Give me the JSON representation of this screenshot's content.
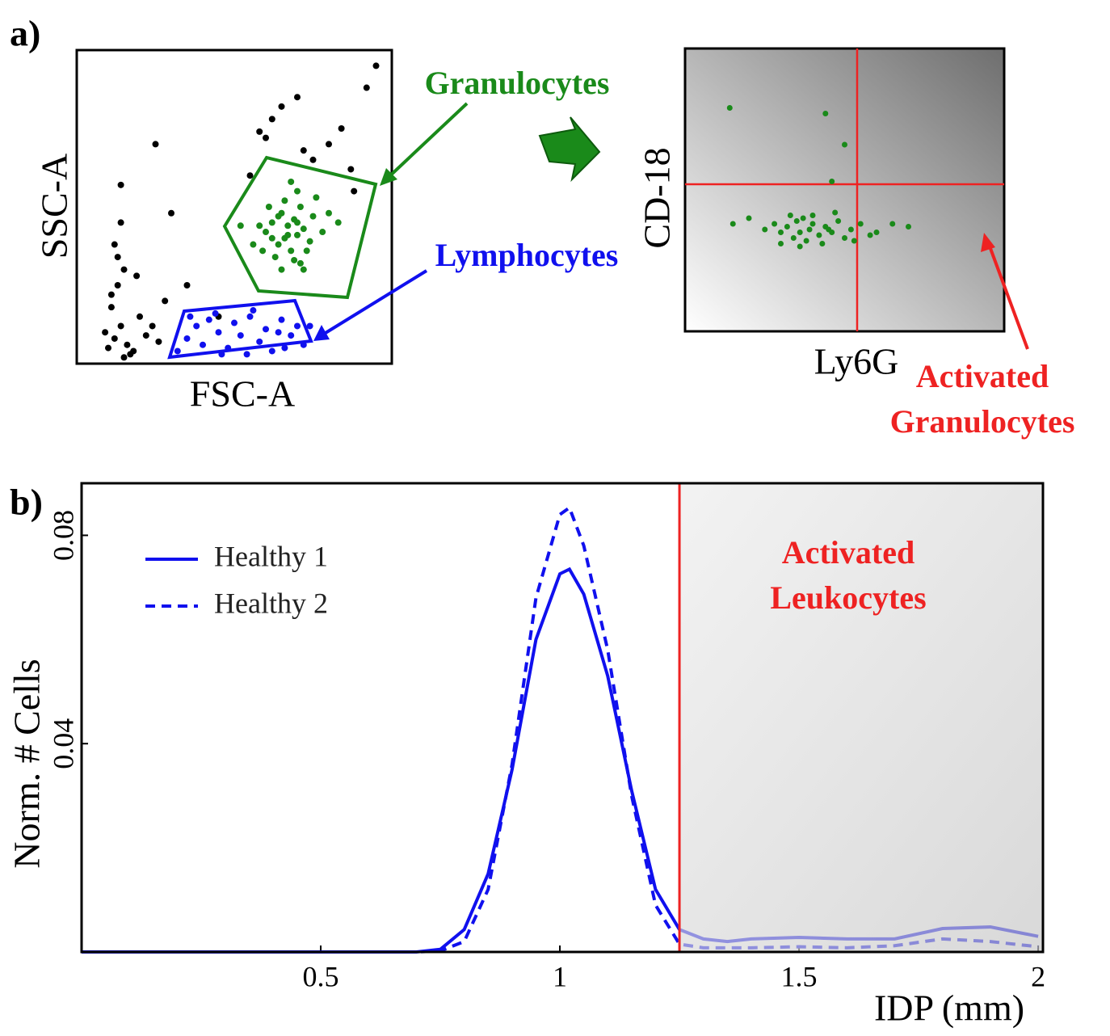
{
  "panel_labels": [
    "a)",
    "b)"
  ],
  "chart_data": [
    {
      "type": "scatter",
      "xlabel": "FSC-A",
      "ylabel": "SSC-A",
      "xlim": [
        0,
        100
      ],
      "ylim": [
        0,
        100
      ],
      "annotations": [
        "Granulocytes",
        "Lymphocytes"
      ],
      "series": [
        {
          "color": "#000000",
          "x": [
            10,
            12,
            14,
            11,
            13,
            15,
            9,
            16,
            18,
            12,
            14,
            20,
            22,
            17,
            24,
            26,
            11,
            13,
            15,
            19,
            14,
            28,
            35,
            45,
            55,
            62,
            60,
            65,
            70,
            75,
            80,
            87,
            92,
            30,
            25,
            58,
            72,
            84,
            88,
            95
          ],
          "values": [
            5,
            8,
            12,
            18,
            25,
            30,
            10,
            6,
            4,
            38,
            45,
            15,
            9,
            3,
            12,
            7,
            22,
            34,
            2,
            28,
            57,
            20,
            25,
            15,
            60,
            78,
            72,
            82,
            85,
            65,
            70,
            62,
            88,
            48,
            70,
            74,
            68,
            75,
            55,
            95
          ]
        },
        {
          "color": "#1a8a1a",
          "x": [
            60,
            62,
            64,
            65,
            66,
            67,
            68,
            69,
            70,
            71,
            72,
            74,
            63,
            66,
            69,
            58,
            75,
            78,
            61,
            70,
            73,
            56,
            80,
            65,
            68,
            71,
            64,
            67,
            70,
            62,
            52,
            76,
            83,
            59,
            72
          ],
          "values": [
            42,
            45,
            38,
            48,
            40,
            44,
            36,
            46,
            41,
            50,
            43,
            39,
            34,
            52,
            33,
            44,
            47,
            42,
            50,
            55,
            36,
            38,
            48,
            30,
            58,
            32,
            47,
            41,
            45,
            40,
            44,
            53,
            45,
            36,
            30
          ]
        },
        {
          "color": "#1010ee",
          "x": [
            32,
            35,
            38,
            40,
            42,
            45,
            48,
            50,
            52,
            55,
            58,
            60,
            62,
            65,
            68,
            70,
            72,
            44,
            54,
            64,
            36,
            46,
            56,
            66,
            74
          ],
          "values": [
            4,
            8,
            12,
            6,
            14,
            10,
            5,
            13,
            9,
            15,
            7,
            11,
            4,
            14,
            9,
            12,
            6,
            16,
            3,
            10,
            15,
            3,
            17,
            5,
            12
          ]
        }
      ]
    },
    {
      "type": "scatter",
      "xlabel": "Ly6G",
      "ylabel": "CD-18",
      "xlim": [
        0,
        100
      ],
      "ylim": [
        0,
        100
      ],
      "log_scale": true,
      "annotation": [
        "Activated",
        "Granulocytes"
      ],
      "series": [
        {
          "color": "#1a8a1a",
          "x": [
            25,
            28,
            30,
            32,
            34,
            35,
            36,
            37,
            38,
            39,
            40,
            42,
            44,
            46,
            48,
            50,
            52,
            55,
            58,
            30,
            33,
            36,
            40,
            43,
            47,
            20,
            60,
            65,
            70,
            15,
            45,
            53,
            14,
            44,
            50,
            46
          ],
          "values": [
            36,
            38,
            35,
            37,
            33,
            39,
            35,
            40,
            32,
            36,
            38,
            34,
            37,
            35,
            39,
            33,
            36,
            38,
            34,
            31,
            41,
            30,
            41,
            31,
            42,
            40,
            35,
            38,
            37,
            38,
            36,
            32,
            79,
            77,
            66,
            53
          ]
        }
      ]
    },
    {
      "type": "line",
      "xlabel": "IDP (mm)",
      "ylabel": "Norm. # Cells",
      "annotation": [
        "Activated",
        "Leukocytes"
      ],
      "xlim": [
        0,
        2.01
      ],
      "ylim": [
        0,
        0.09
      ],
      "xticks": [
        0.5,
        1,
        1.5,
        2
      ],
      "yticks": [
        0.04,
        0.08
      ],
      "threshold": 1.25,
      "legend": "upper left",
      "x": [
        0,
        0.7,
        0.75,
        0.8,
        0.85,
        0.9,
        0.95,
        1.0,
        1.02,
        1.05,
        1.1,
        1.15,
        1.2,
        1.25,
        1.3,
        1.35,
        1.4,
        1.5,
        1.6,
        1.7,
        1.8,
        1.9,
        2.0
      ],
      "series": [
        {
          "name": "Healthy 1",
          "color": "#1010ee",
          "dash": "solid",
          "values": [
            0,
            0,
            0.0005,
            0.0043,
            0.015,
            0.035,
            0.06,
            0.0726,
            0.0735,
            0.0687,
            0.053,
            0.031,
            0.012,
            0.0043,
            0.0025,
            0.002,
            0.0025,
            0.0028,
            0.0025,
            0.0025,
            0.0045,
            0.0048,
            0.003
          ]
        },
        {
          "name": "Healthy 2",
          "color": "#1010ee",
          "dash": "dashed",
          "values": [
            0,
            0,
            0.0002,
            0.002,
            0.012,
            0.036,
            0.068,
            0.084,
            0.0853,
            0.078,
            0.058,
            0.03,
            0.009,
            0.0015,
            0.0008,
            0.0008,
            0.0008,
            0.001,
            0.0008,
            0.0012,
            0.0025,
            0.002,
            0.001
          ]
        }
      ]
    }
  ]
}
